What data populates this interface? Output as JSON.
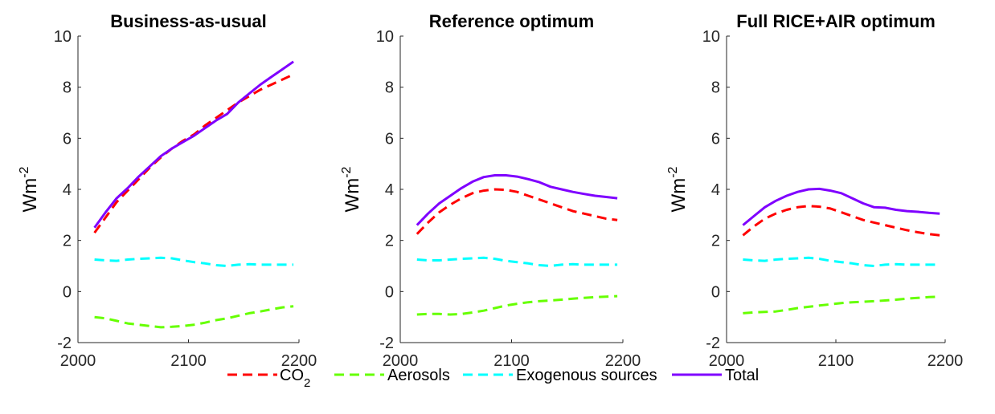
{
  "chart_data": [
    {
      "type": "line",
      "title": "Business-as-usual",
      "ylabel": "Wm",
      "ylabel_exp": "-2",
      "xlim": [
        2000,
        2200
      ],
      "ylim": [
        -2,
        10
      ],
      "xticks": [
        "2000",
        "2100",
        "2200"
      ],
      "yticks": [
        "-2",
        "0",
        "2",
        "4",
        "6",
        "8",
        "10"
      ],
      "x": [
        2015,
        2025,
        2035,
        2045,
        2055,
        2065,
        2075,
        2085,
        2095,
        2105,
        2115,
        2125,
        2135,
        2145,
        2155,
        2165,
        2175,
        2185,
        2195
      ],
      "series": [
        {
          "name": "CO2",
          "color": "#ff0000",
          "style": "dashed",
          "values": [
            2.3,
            2.9,
            3.5,
            3.95,
            4.4,
            4.85,
            5.25,
            5.6,
            5.9,
            6.15,
            6.5,
            6.8,
            7.1,
            7.4,
            7.65,
            7.9,
            8.1,
            8.3,
            8.5
          ]
        },
        {
          "name": "Aerosols",
          "color": "#66ff00",
          "style": "dashed",
          "values": [
            -1.0,
            -1.05,
            -1.15,
            -1.25,
            -1.3,
            -1.35,
            -1.4,
            -1.38,
            -1.35,
            -1.3,
            -1.22,
            -1.12,
            -1.05,
            -0.95,
            -0.85,
            -0.78,
            -0.7,
            -0.62,
            -0.58
          ]
        },
        {
          "name": "Exogenous sources",
          "color": "#00ffff",
          "style": "dashed",
          "values": [
            1.25,
            1.22,
            1.2,
            1.25,
            1.28,
            1.3,
            1.32,
            1.3,
            1.22,
            1.15,
            1.1,
            1.03,
            1.0,
            1.05,
            1.07,
            1.05,
            1.05,
            1.05,
            1.05
          ]
        },
        {
          "name": "Total",
          "color": "#7f00ff",
          "style": "solid",
          "values": [
            2.5,
            3.1,
            3.65,
            4.05,
            4.5,
            4.9,
            5.3,
            5.6,
            5.85,
            6.1,
            6.4,
            6.7,
            6.95,
            7.4,
            7.75,
            8.1,
            8.4,
            8.7,
            9.0
          ]
        }
      ]
    },
    {
      "type": "line",
      "title": "Reference optimum",
      "ylabel": "Wm",
      "ylabel_exp": "-2",
      "xlim": [
        2000,
        2200
      ],
      "ylim": [
        -2,
        10
      ],
      "xticks": [
        "2000",
        "2100",
        "2200"
      ],
      "yticks": [
        "-2",
        "0",
        "2",
        "4",
        "6",
        "8",
        "10"
      ],
      "x": [
        2015,
        2025,
        2035,
        2045,
        2055,
        2065,
        2075,
        2085,
        2095,
        2105,
        2115,
        2125,
        2135,
        2145,
        2155,
        2165,
        2175,
        2185,
        2195
      ],
      "series": [
        {
          "name": "CO2",
          "color": "#ff0000",
          "style": "dashed",
          "values": [
            2.25,
            2.7,
            3.1,
            3.4,
            3.65,
            3.85,
            3.95,
            4.0,
            3.98,
            3.9,
            3.75,
            3.6,
            3.45,
            3.3,
            3.15,
            3.05,
            2.95,
            2.85,
            2.8
          ]
        },
        {
          "name": "Aerosols",
          "color": "#66ff00",
          "style": "dashed",
          "values": [
            -0.9,
            -0.88,
            -0.88,
            -0.9,
            -0.88,
            -0.82,
            -0.75,
            -0.65,
            -0.55,
            -0.48,
            -0.42,
            -0.38,
            -0.35,
            -0.32,
            -0.28,
            -0.25,
            -0.22,
            -0.2,
            -0.18
          ]
        },
        {
          "name": "Exogenous sources",
          "color": "#00ffff",
          "style": "dashed",
          "values": [
            1.25,
            1.22,
            1.22,
            1.25,
            1.28,
            1.3,
            1.32,
            1.28,
            1.2,
            1.15,
            1.1,
            1.03,
            1.0,
            1.05,
            1.07,
            1.05,
            1.05,
            1.05,
            1.05
          ]
        },
        {
          "name": "Total",
          "color": "#7f00ff",
          "style": "solid",
          "values": [
            2.6,
            3.05,
            3.45,
            3.75,
            4.05,
            4.3,
            4.48,
            4.55,
            4.55,
            4.5,
            4.4,
            4.28,
            4.1,
            4.0,
            3.9,
            3.82,
            3.75,
            3.7,
            3.65
          ]
        }
      ]
    },
    {
      "type": "line",
      "title": "Full RICE+AIR optimum",
      "ylabel": "Wm",
      "ylabel_exp": "-2",
      "xlim": [
        2000,
        2200
      ],
      "ylim": [
        -2,
        10
      ],
      "xticks": [
        "2000",
        "2100",
        "2200"
      ],
      "yticks": [
        "-2",
        "0",
        "2",
        "4",
        "6",
        "8",
        "10"
      ],
      "x": [
        2015,
        2025,
        2035,
        2045,
        2055,
        2065,
        2075,
        2085,
        2095,
        2105,
        2115,
        2125,
        2135,
        2145,
        2155,
        2165,
        2175,
        2185,
        2195
      ],
      "series": [
        {
          "name": "CO2",
          "color": "#ff0000",
          "style": "dashed",
          "values": [
            2.2,
            2.55,
            2.85,
            3.05,
            3.2,
            3.3,
            3.35,
            3.32,
            3.25,
            3.1,
            2.95,
            2.8,
            2.7,
            2.6,
            2.5,
            2.4,
            2.32,
            2.25,
            2.2
          ]
        },
        {
          "name": "Aerosols",
          "color": "#66ff00",
          "style": "dashed",
          "values": [
            -0.85,
            -0.82,
            -0.8,
            -0.78,
            -0.72,
            -0.65,
            -0.6,
            -0.55,
            -0.5,
            -0.45,
            -0.42,
            -0.4,
            -0.38,
            -0.35,
            -0.32,
            -0.28,
            -0.25,
            -0.22,
            -0.2
          ]
        },
        {
          "name": "Exogenous sources",
          "color": "#00ffff",
          "style": "dashed",
          "values": [
            1.25,
            1.22,
            1.2,
            1.25,
            1.28,
            1.3,
            1.32,
            1.28,
            1.2,
            1.15,
            1.1,
            1.03,
            1.0,
            1.05,
            1.07,
            1.05,
            1.05,
            1.05,
            1.05
          ]
        },
        {
          "name": "Total",
          "color": "#7f00ff",
          "style": "solid",
          "values": [
            2.6,
            2.95,
            3.3,
            3.55,
            3.75,
            3.9,
            4.0,
            4.02,
            3.95,
            3.85,
            3.65,
            3.45,
            3.3,
            3.28,
            3.2,
            3.15,
            3.12,
            3.08,
            3.05
          ]
        }
      ]
    }
  ],
  "legend": {
    "placement": "bottom-center",
    "items": [
      {
        "label": "CO",
        "sub": "2",
        "color": "#ff0000",
        "style": "dashed"
      },
      {
        "label": "Aerosols",
        "color": "#66ff00",
        "style": "dashed"
      },
      {
        "label": "Exogenous sources",
        "color": "#00ffff",
        "style": "dashed"
      },
      {
        "label": "Total",
        "color": "#7f00ff",
        "style": "solid"
      }
    ]
  }
}
